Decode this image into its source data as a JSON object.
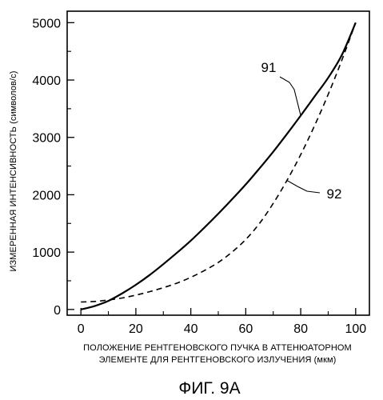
{
  "chart_data": {
    "type": "line",
    "title": "",
    "ylabel": "ИЗМЕРЕННАЯ ИНТЕНСИВНОСТЬ (символов/с)",
    "xlabel": [
      "ПОЛОЖЕНИЕ РЕНТГЕНОВСКОГО ПУЧКА В АТТЕНЮАТОРНОМ",
      "ЭЛЕМЕНТЕ ДЛЯ РЕНТГЕНОВСКОГО ИЗЛУЧЕНИЯ (мкм)"
    ],
    "caption": "ФИГ. 9А",
    "xlim": [
      -5,
      105
    ],
    "ylim": [
      -100,
      5200
    ],
    "xticks": [
      0,
      20,
      40,
      60,
      80,
      100
    ],
    "xtick_labels": [
      "0",
      "20",
      "40",
      "60",
      "80",
      "100"
    ],
    "yticks": [
      0,
      1000,
      2000,
      3000,
      4000,
      5000
    ],
    "ytick_labels": [
      "0",
      "1000",
      "2000",
      "3000",
      "4000",
      "5000"
    ],
    "grid": false,
    "series": [
      {
        "name": "91",
        "style": "solid",
        "x": [
          0,
          5,
          10,
          15,
          20,
          25,
          30,
          35,
          40,
          45,
          50,
          55,
          60,
          65,
          70,
          75,
          80,
          85,
          90,
          95,
          100
        ],
        "y": [
          0,
          60,
          150,
          280,
          430,
          600,
          790,
          990,
          1200,
          1430,
          1670,
          1920,
          2180,
          2460,
          2750,
          3060,
          3380,
          3710,
          4040,
          4440,
          5000
        ]
      },
      {
        "name": "92",
        "style": "dashed",
        "x": [
          0,
          5,
          10,
          15,
          20,
          25,
          30,
          35,
          40,
          45,
          50,
          55,
          60,
          65,
          70,
          75,
          80,
          85,
          90,
          95,
          100
        ],
        "y": [
          130,
          140,
          165,
          200,
          250,
          310,
          380,
          460,
          560,
          680,
          820,
          1000,
          1220,
          1500,
          1850,
          2250,
          2700,
          3200,
          3750,
          4350,
          5000
        ]
      }
    ]
  }
}
